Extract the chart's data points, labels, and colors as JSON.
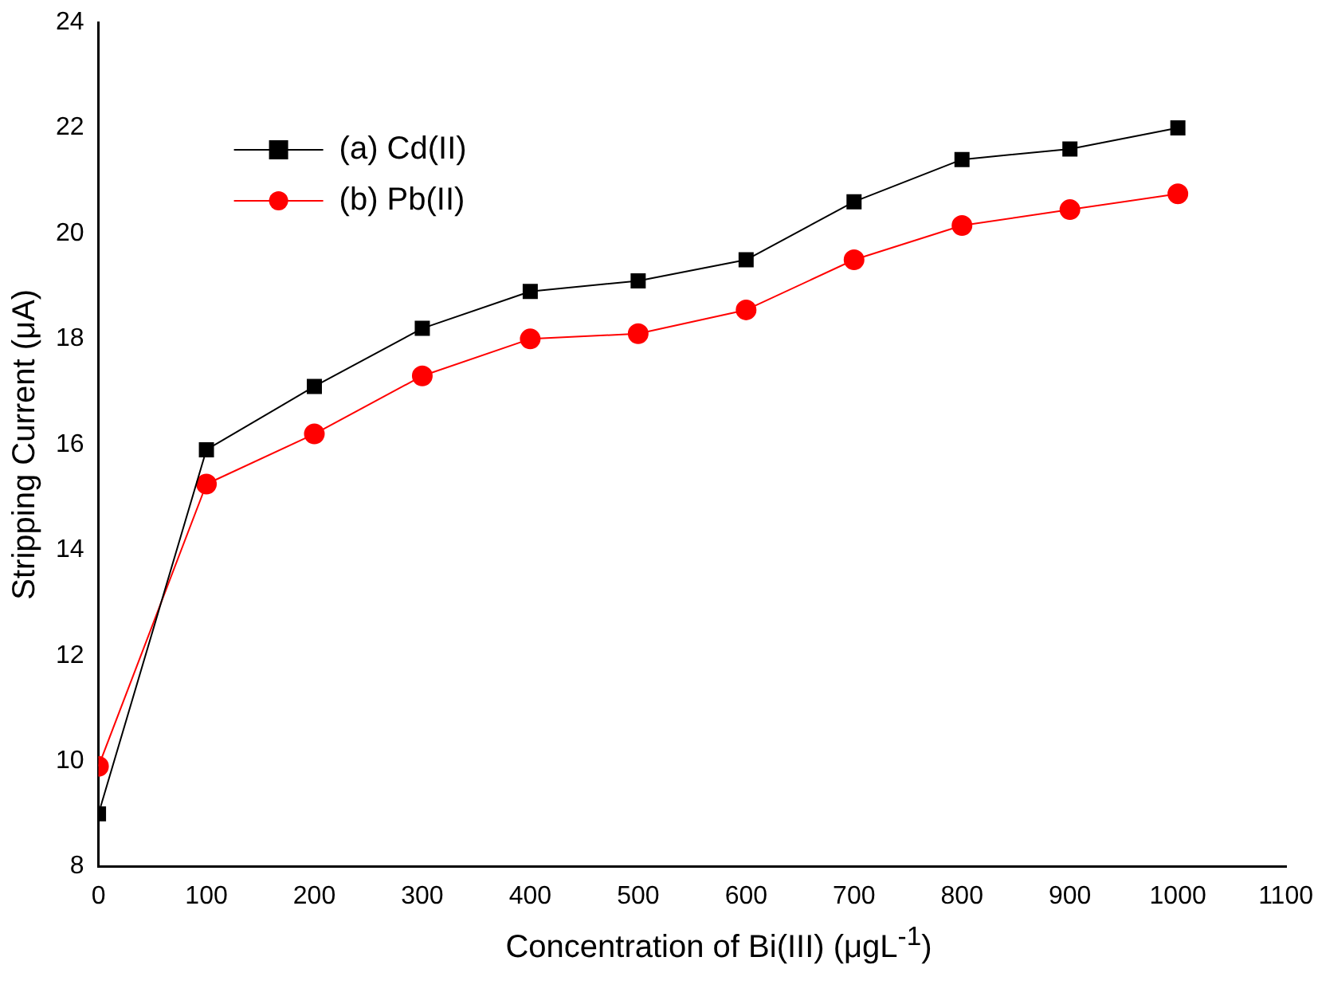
{
  "chart_data": {
    "type": "line",
    "xlabel": "Concentration of Bi(III) (μgL$^{-1}$)",
    "ylabel": "Stripping Current (μA)",
    "x": [
      0,
      100,
      200,
      300,
      400,
      500,
      600,
      700,
      800,
      900,
      1000
    ],
    "series": [
      {
        "name": "(a) Cd(II)",
        "color": "#000000",
        "marker": "square",
        "values": [
          9.0,
          15.9,
          17.1,
          18.2,
          18.9,
          19.1,
          19.5,
          20.6,
          21.4,
          21.6,
          22.0
        ]
      },
      {
        "name": "(b) Pb(II)",
        "color": "#ff0000",
        "marker": "circle",
        "values": [
          9.9,
          15.25,
          16.2,
          17.3,
          18.0,
          18.1,
          18.55,
          19.5,
          20.15,
          20.45,
          20.75
        ]
      }
    ],
    "xlim": [
      0,
      1100
    ],
    "xticks": [
      0,
      100,
      200,
      300,
      400,
      500,
      600,
      700,
      800,
      900,
      1000,
      1100
    ],
    "ylim": [
      8,
      24
    ],
    "yticks": [
      8,
      10,
      12,
      14,
      16,
      18,
      20,
      22,
      24
    ],
    "grid": false,
    "legend": "top left",
    "line_style": "solid"
  }
}
